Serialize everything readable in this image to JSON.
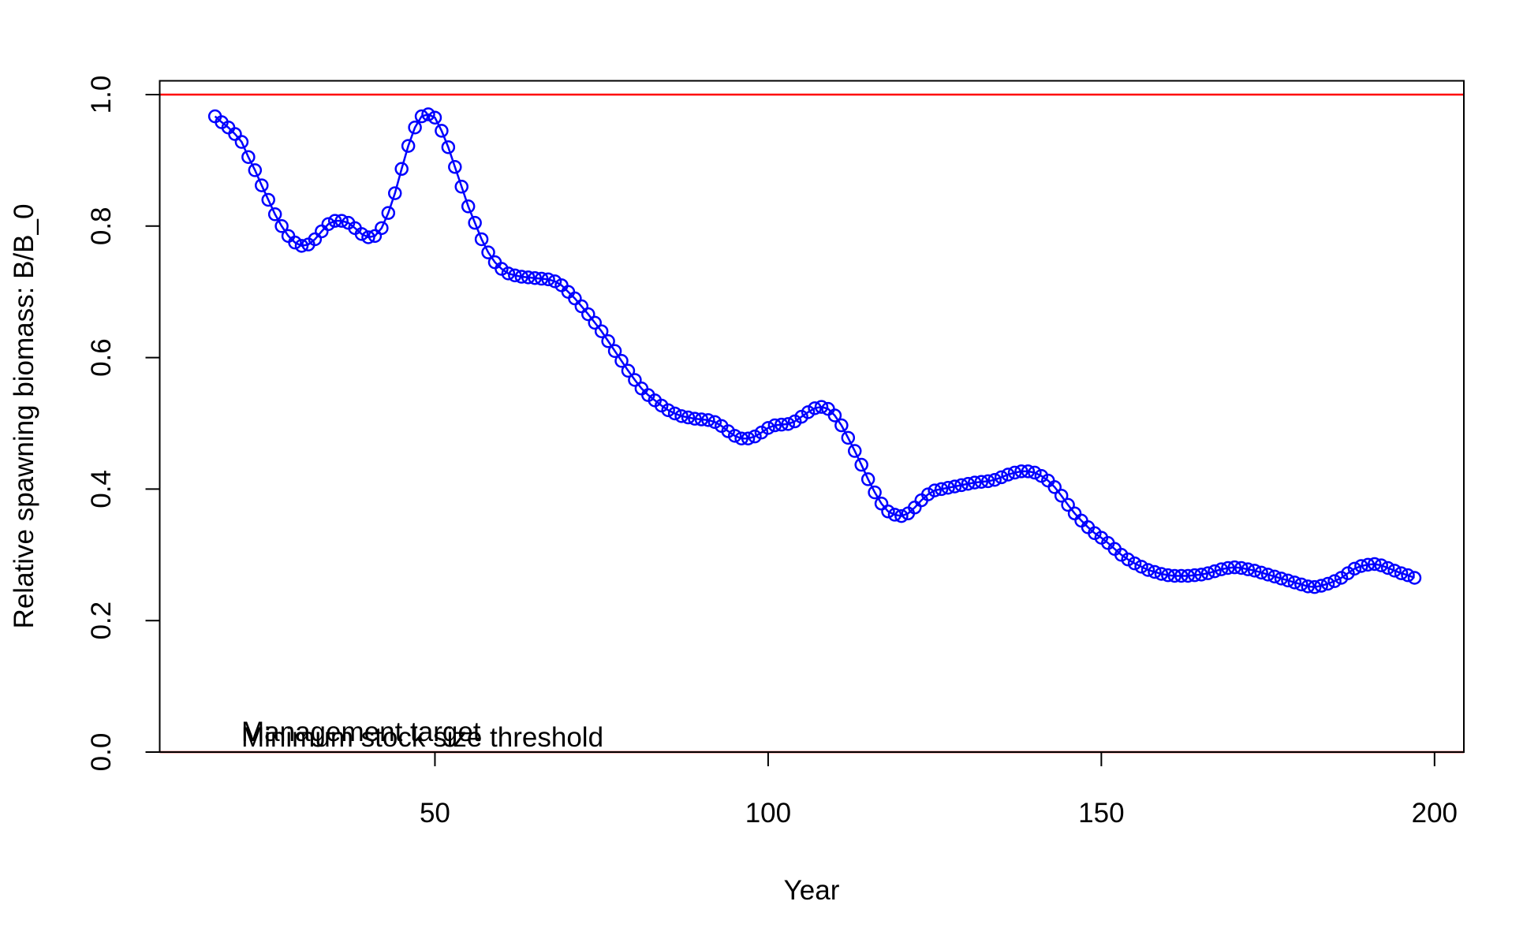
{
  "chart_data": {
    "type": "line",
    "xlabel": "Year",
    "ylabel": "Relative spawning biomass: B/B_0",
    "x": [
      17,
      18,
      19,
      20,
      21,
      22,
      23,
      24,
      25,
      26,
      27,
      28,
      29,
      30,
      31,
      32,
      33,
      34,
      35,
      36,
      37,
      38,
      39,
      40,
      41,
      42,
      43,
      44,
      45,
      46,
      47,
      48,
      49,
      50,
      51,
      52,
      53,
      54,
      55,
      56,
      57,
      58,
      59,
      60,
      61,
      62,
      63,
      64,
      65,
      66,
      67,
      68,
      69,
      70,
      71,
      72,
      73,
      74,
      75,
      76,
      77,
      78,
      79,
      80,
      81,
      82,
      83,
      84,
      85,
      86,
      87,
      88,
      89,
      90,
      91,
      92,
      93,
      94,
      95,
      96,
      97,
      98,
      99,
      100,
      101,
      102,
      103,
      104,
      105,
      106,
      107,
      108,
      109,
      110,
      111,
      112,
      113,
      114,
      115,
      116,
      117,
      118,
      119,
      120,
      121,
      122,
      123,
      124,
      125,
      126,
      127,
      128,
      129,
      130,
      131,
      132,
      133,
      134,
      135,
      136,
      137,
      138,
      139,
      140,
      141,
      142,
      143,
      144,
      145,
      146,
      147,
      148,
      149,
      150,
      151,
      152,
      153,
      154,
      155,
      156,
      157,
      158,
      159,
      160,
      161,
      162,
      163,
      164,
      165,
      166,
      167,
      168,
      169,
      170,
      171,
      172,
      173,
      174,
      175,
      176,
      177,
      178,
      179,
      180,
      181,
      182,
      183,
      184,
      185,
      186,
      187,
      188,
      189,
      190,
      191,
      192,
      193,
      194,
      195,
      196,
      197
    ],
    "series": [
      {
        "color": "#0000ff",
        "marker": "circle",
        "values": [
          0.967,
          0.958,
          0.95,
          0.94,
          0.928,
          0.905,
          0.885,
          0.862,
          0.84,
          0.818,
          0.8,
          0.785,
          0.775,
          0.77,
          0.772,
          0.78,
          0.792,
          0.803,
          0.808,
          0.808,
          0.805,
          0.797,
          0.788,
          0.783,
          0.785,
          0.797,
          0.82,
          0.85,
          0.887,
          0.922,
          0.95,
          0.967,
          0.97,
          0.965,
          0.945,
          0.92,
          0.89,
          0.86,
          0.83,
          0.805,
          0.78,
          0.76,
          0.745,
          0.735,
          0.728,
          0.725,
          0.723,
          0.722,
          0.721,
          0.72,
          0.719,
          0.716,
          0.71,
          0.7,
          0.69,
          0.678,
          0.666,
          0.653,
          0.64,
          0.625,
          0.61,
          0.595,
          0.58,
          0.566,
          0.553,
          0.543,
          0.535,
          0.527,
          0.52,
          0.515,
          0.511,
          0.509,
          0.507,
          0.506,
          0.505,
          0.502,
          0.496,
          0.488,
          0.481,
          0.477,
          0.477,
          0.48,
          0.486,
          0.493,
          0.497,
          0.498,
          0.499,
          0.503,
          0.51,
          0.517,
          0.523,
          0.525,
          0.522,
          0.512,
          0.497,
          0.478,
          0.458,
          0.437,
          0.415,
          0.395,
          0.378,
          0.366,
          0.361,
          0.359,
          0.363,
          0.372,
          0.383,
          0.392,
          0.398,
          0.4,
          0.402,
          0.404,
          0.406,
          0.408,
          0.41,
          0.411,
          0.412,
          0.414,
          0.418,
          0.422,
          0.425,
          0.427,
          0.427,
          0.425,
          0.42,
          0.413,
          0.403,
          0.39,
          0.376,
          0.363,
          0.352,
          0.342,
          0.333,
          0.326,
          0.318,
          0.309,
          0.3,
          0.293,
          0.287,
          0.282,
          0.277,
          0.274,
          0.271,
          0.269,
          0.268,
          0.268,
          0.268,
          0.269,
          0.27,
          0.272,
          0.275,
          0.278,
          0.28,
          0.281,
          0.28,
          0.278,
          0.276,
          0.273,
          0.27,
          0.267,
          0.264,
          0.261,
          0.258,
          0.255,
          0.252,
          0.251,
          0.253,
          0.256,
          0.26,
          0.265,
          0.272,
          0.279,
          0.283,
          0.285,
          0.286,
          0.284,
          0.28,
          0.276,
          0.272,
          0.269,
          0.265
        ]
      }
    ],
    "hlines": [
      {
        "value": 1.0,
        "color": "#ff0000"
      },
      {
        "value": 0.0,
        "color": "#ff0000"
      }
    ],
    "annotations": [
      "Management target",
      "Minimum stock size threshold"
    ],
    "xlim": [
      8.7,
      204.4
    ],
    "ylim": [
      0,
      1.021
    ],
    "xticks": [
      50,
      100,
      150,
      200
    ],
    "yticks": [
      {
        "value": 0,
        "label": "0.0"
      },
      {
        "value": 0.2,
        "label": "0.2"
      },
      {
        "value": 0.4,
        "label": "0.4"
      },
      {
        "value": 0.6,
        "label": "0.6"
      },
      {
        "value": 0.8,
        "label": "0.8"
      },
      {
        "value": 1,
        "label": "1.0"
      }
    ]
  }
}
